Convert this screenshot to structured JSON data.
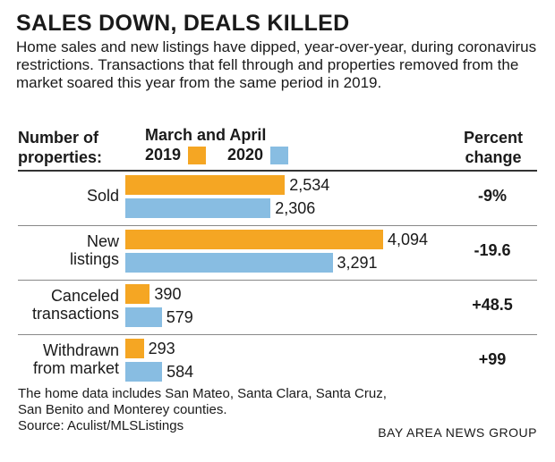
{
  "title": "SALES DOWN, DEALS KILLED",
  "subtitle": "Home sales and new listings have dipped, year-over-year, during coronavirus restrictions. Transactions that fell through and properties removed from the market soared this year from the same period in 2019.",
  "header": {
    "left_line1": "Number of",
    "left_line2": "properties:",
    "period": "March and April",
    "right_line1": "Percent",
    "right_line2": "change"
  },
  "colors": {
    "y2019": "#f5a623",
    "y2020": "#88bde2"
  },
  "chart_data": {
    "type": "bar",
    "orientation": "horizontal",
    "categories": [
      "Sold",
      "New listings",
      "Canceled transactions",
      "Withdrawn from market"
    ],
    "category_lines": [
      [
        "Sold"
      ],
      [
        "New",
        "listings"
      ],
      [
        "Canceled",
        "transactions"
      ],
      [
        "Withdrawn",
        "from market"
      ]
    ],
    "series": [
      {
        "name": "2019",
        "values": [
          2534,
          4094,
          390,
          293
        ],
        "labels": [
          "2,534",
          "4,094",
          "390",
          "293"
        ]
      },
      {
        "name": "2020",
        "values": [
          2306,
          3291,
          579,
          584
        ],
        "labels": [
          "2,306",
          "3,291",
          "579",
          "584"
        ]
      }
    ],
    "percent_change": [
      "-9%",
      "-19.6",
      "+48.5",
      "+99"
    ],
    "xlim": [
      0,
      4094
    ],
    "legend_placement": "top"
  },
  "footnote_line1": "The home data includes San Mateo, Santa Clara, Santa Cruz,",
  "footnote_line2": "San Benito and Monterey counties.",
  "source": "Source: Aculist/MLSListings",
  "credit": "BAY AREA NEWS GROUP"
}
